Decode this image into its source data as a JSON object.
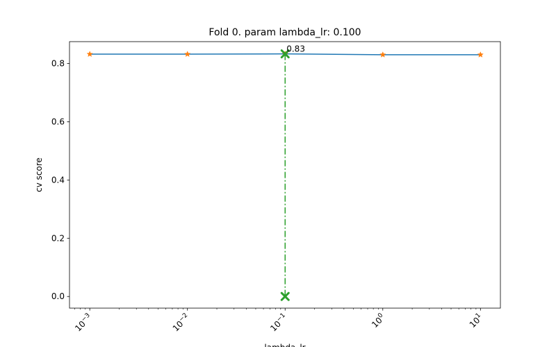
{
  "chart_data": {
    "type": "line",
    "title": "Fold 0. param lambda_lr: 0.100",
    "xlabel": "lambda_lr",
    "ylabel": "cv score",
    "xscale": "log",
    "xlim": [
      0.00062,
      16
    ],
    "ylim": [
      -0.04,
      0.875
    ],
    "grid": false,
    "x_ticks": [
      0.001,
      0.01,
      0.1,
      1,
      10
    ],
    "x_tick_labels": [
      {
        "base": "10",
        "exp": "−3"
      },
      {
        "base": "10",
        "exp": "−2"
      },
      {
        "base": "10",
        "exp": "−1"
      },
      {
        "base": "10",
        "exp": "0"
      },
      {
        "base": "10",
        "exp": "1"
      }
    ],
    "y_ticks": [
      0.0,
      0.2,
      0.4,
      0.6,
      0.8
    ],
    "y_tick_labels": [
      "0.0",
      "0.2",
      "0.4",
      "0.6",
      "0.8"
    ],
    "series": [
      {
        "x": [
          0.001,
          0.01,
          0.1,
          1,
          10
        ],
        "y": [
          0.832,
          0.832,
          0.833,
          0.83,
          0.83
        ],
        "color": "#1f77b4",
        "marker_color": "#ff7f0e",
        "marker": "star"
      }
    ],
    "best": {
      "x": 0.1,
      "y": 0.833,
      "label": "0.83",
      "color": "#2ca02c",
      "marker": "x",
      "line_style": "dash-dot"
    }
  }
}
